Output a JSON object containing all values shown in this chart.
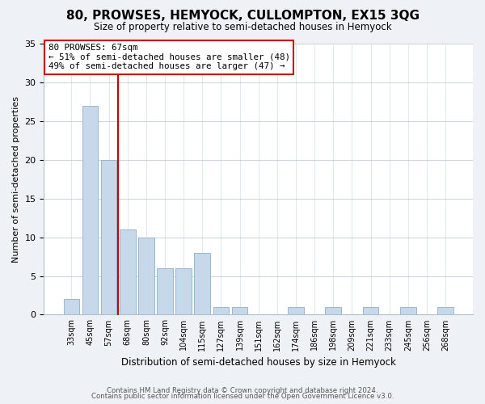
{
  "title": "80, PROWSES, HEMYOCK, CULLOMPTON, EX15 3QG",
  "subtitle": "Size of property relative to semi-detached houses in Hemyock",
  "xlabel": "Distribution of semi-detached houses by size in Hemyock",
  "ylabel": "Number of semi-detached properties",
  "bin_labels": [
    "33sqm",
    "45sqm",
    "57sqm",
    "68sqm",
    "80sqm",
    "92sqm",
    "104sqm",
    "115sqm",
    "127sqm",
    "139sqm",
    "151sqm",
    "162sqm",
    "174sqm",
    "186sqm",
    "198sqm",
    "209sqm",
    "221sqm",
    "233sqm",
    "245sqm",
    "256sqm",
    "268sqm"
  ],
  "bar_heights": [
    2,
    27,
    20,
    11,
    10,
    6,
    6,
    8,
    1,
    1,
    0,
    0,
    1,
    0,
    1,
    0,
    1,
    0,
    1,
    0,
    1
  ],
  "bar_color": "#c8d8eb",
  "bar_edge_color": "#98b8d0",
  "ylim": [
    0,
    35
  ],
  "yticks": [
    0,
    5,
    10,
    15,
    20,
    25,
    30,
    35
  ],
  "vline_index": 2.5,
  "property_line_label": "80 PROWSES: 67sqm",
  "annotation_line1": "← 51% of semi-detached houses are smaller (48)",
  "annotation_line2": "49% of semi-detached houses are larger (47) →",
  "annotation_box_color": "#ffffff",
  "annotation_box_edge": "#cc0000",
  "vline_color": "#cc0000",
  "footer1": "Contains HM Land Registry data © Crown copyright and database right 2024.",
  "footer2": "Contains public sector information licensed under the Open Government Licence v3.0.",
  "bg_color": "#eef2f7",
  "plot_bg_color": "#ffffff",
  "grid_color": "#c8d4e0"
}
